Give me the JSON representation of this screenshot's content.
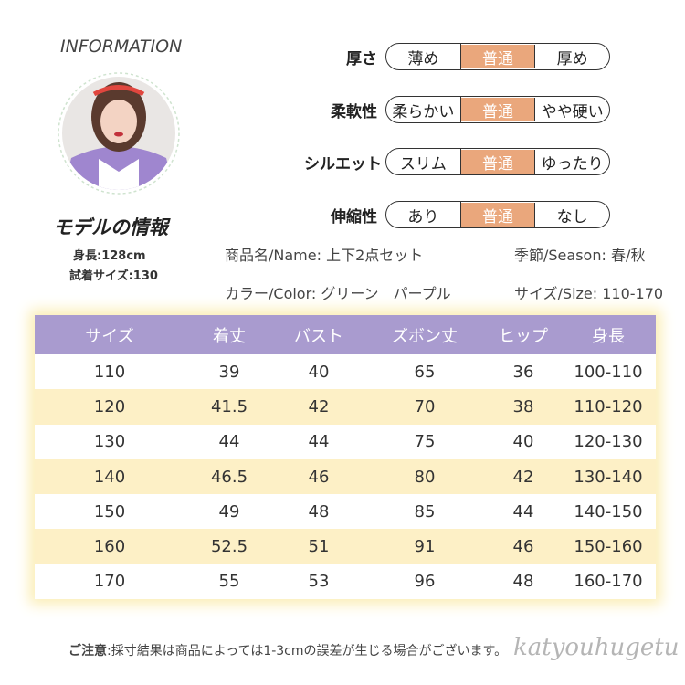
{
  "header": {
    "title": "INFORMATION"
  },
  "model": {
    "title": "モデルの情報",
    "height": "身長:128cm",
    "size": "試着サイズ:130"
  },
  "attributes": [
    {
      "label": "厚さ",
      "options": [
        "薄め",
        "普通",
        "厚め"
      ],
      "selected": 1
    },
    {
      "label": "柔軟性",
      "options": [
        "柔らかい",
        "普通",
        "やや硬い"
      ],
      "selected": 1
    },
    {
      "label": "シルエット",
      "options": [
        "スリム",
        "普通",
        "ゆったり"
      ],
      "selected": 1
    },
    {
      "label": "伸縮性",
      "options": [
        "あり",
        "普通",
        "なし"
      ],
      "selected": 1
    }
  ],
  "product": {
    "name": "商品名/Name: 上下2点セット",
    "season": "季節/Season: 春/秋",
    "color": "カラー/Color: グリーン　パープル",
    "size": "サイズ/Size: 110-170"
  },
  "table": {
    "columns": [
      "サイズ",
      "着丈",
      "バスト",
      "ズボン丈",
      "ヒップ",
      "身長"
    ],
    "rows": [
      [
        "110",
        "39",
        "40",
        "65",
        "36",
        "100-110"
      ],
      [
        "120",
        "41.5",
        "42",
        "70",
        "38",
        "110-120"
      ],
      [
        "130",
        "44",
        "44",
        "75",
        "40",
        "120-130"
      ],
      [
        "140",
        "46.5",
        "46",
        "80",
        "42",
        "130-140"
      ],
      [
        "150",
        "49",
        "48",
        "85",
        "44",
        "140-150"
      ],
      [
        "160",
        "52.5",
        "51",
        "91",
        "46",
        "150-160"
      ],
      [
        "170",
        "55",
        "53",
        "96",
        "48",
        "160-170"
      ]
    ]
  },
  "notice": {
    "label": "ご注意",
    "text": ":採寸結果は商品によっては1-3cmの誤差が生じる場合がございます。"
  },
  "watermark": "katyouhugetu"
}
